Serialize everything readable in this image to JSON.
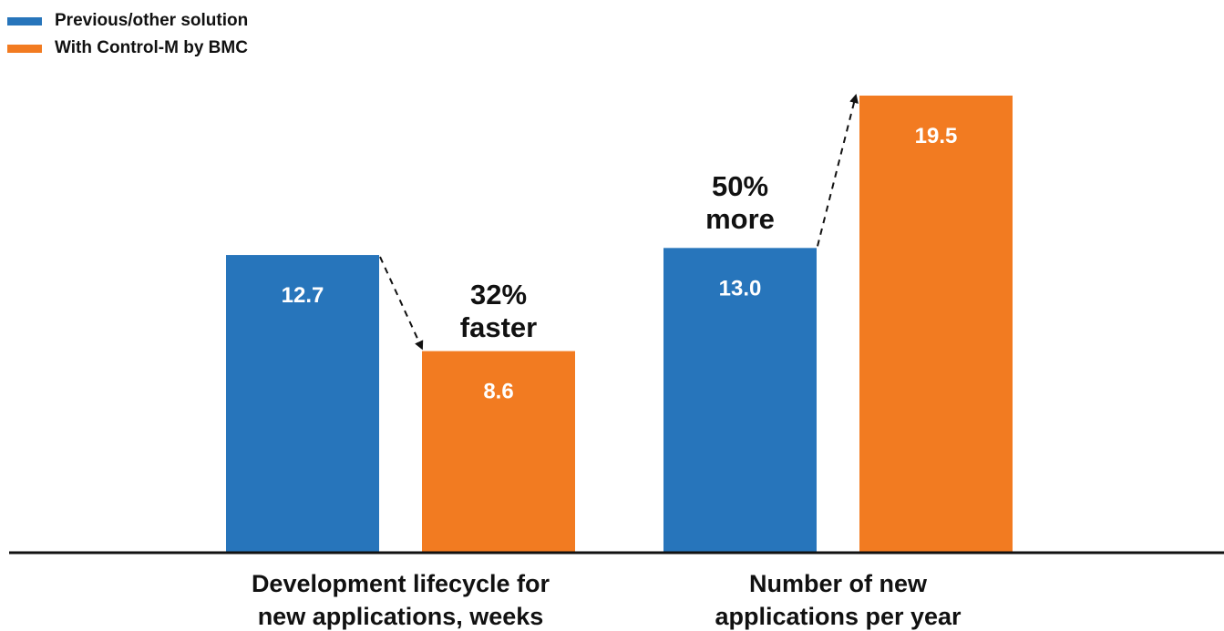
{
  "legend": {
    "items": [
      {
        "label": "Previous/other solution",
        "color": "#2775bb"
      },
      {
        "label": "With Control-M by BMC",
        "color": "#f27b21"
      }
    ]
  },
  "chart_data": {
    "type": "bar",
    "title": "",
    "legend_position": "top-left",
    "grid": false,
    "groups": [
      {
        "label": "Development lifecycle for new applications, weeks",
        "label_lines": [
          "Development lifecycle for",
          "new applications, weeks"
        ],
        "values": [
          12.7,
          8.6
        ],
        "value_labels": [
          "12.7",
          "8.6"
        ],
        "annotation_lines": [
          "32%",
          "faster"
        ]
      },
      {
        "label": "Number of new applications per year",
        "label_lines": [
          "Number of new",
          "applications per year"
        ],
        "values": [
          13.0,
          19.5
        ],
        "value_labels": [
          "13.0",
          "19.5"
        ],
        "annotation_lines": [
          "50%",
          "more"
        ]
      }
    ],
    "series": [
      {
        "name": "Previous/other solution",
        "color": "#2775bb"
      },
      {
        "name": "With Control-M by BMC",
        "color": "#f27b21"
      }
    ],
    "ylim": [
      0,
      19.5
    ]
  }
}
